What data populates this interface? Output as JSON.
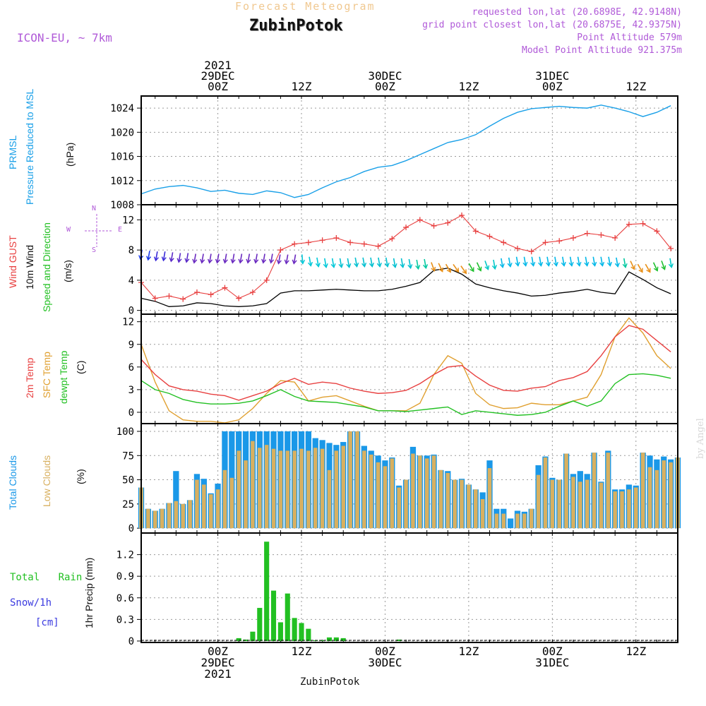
{
  "header": {
    "subtitle": "Forecast Meteogram",
    "title": "ZubinPotok",
    "model": "ICON-EU, ~ 7km",
    "requested": "requested lon,lat (20.6898E, 42.9148N)",
    "closest": "grid point closest lon,lat (20.6875E, 42.9375N)",
    "point_alt": "Point Altitude 579m",
    "model_alt": "Model Point Altitude 921.375m",
    "credit": "by Angel"
  },
  "time_axis": {
    "top_labels": [
      {
        "x": 24,
        "lines": [
          "2021",
          "29DEC",
          "00Z"
        ]
      },
      {
        "x": 36,
        "lines": [
          "12Z"
        ]
      },
      {
        "x": 48,
        "lines": [
          "30DEC",
          "00Z"
        ]
      },
      {
        "x": 60,
        "lines": [
          "12Z"
        ]
      },
      {
        "x": 72,
        "lines": [
          "31DEC",
          "00Z"
        ]
      },
      {
        "x": 84,
        "lines": [
          "12Z"
        ]
      }
    ],
    "bottom_labels": [
      {
        "x": 24,
        "lines": [
          "00Z",
          "29DEC",
          "2021"
        ]
      },
      {
        "x": 36,
        "lines": [
          "12Z"
        ]
      },
      {
        "x": 48,
        "lines": [
          "00Z",
          "30DEC"
        ]
      },
      {
        "x": 60,
        "lines": [
          "12Z"
        ]
      },
      {
        "x": 72,
        "lines": [
          "00Z",
          "31DEC"
        ]
      },
      {
        "x": 84,
        "lines": [
          "12Z"
        ]
      }
    ],
    "bottom_title": "ZubinPotok"
  },
  "panel_labels": {
    "p1": {
      "prmsl": "PRMSL",
      "pressure": "Pressure Reduced to MSL",
      "unit": "(hPa)"
    },
    "p2": {
      "gust": "Wind GUST",
      "wind": "10m Wind",
      "speed": "Speed and Direction",
      "unit": "(m/s)",
      "compass": {
        "n": "N",
        "s": "S",
        "w": "W",
        "e": "E"
      }
    },
    "p3": {
      "t2m": "2m Temp",
      "sfc": "SFC Temp",
      "dewpt": "dewpt Temp",
      "unit": "(C)"
    },
    "p4": {
      "total": "Total Clouds",
      "low": "Low Clouds",
      "unit": "(%)"
    },
    "p5": {
      "rain": "Total Rain",
      "snow": "Snow/1h",
      "snow_unit": "[cm]",
      "precip": "1hr Precip (mm)"
    }
  },
  "colors": {
    "pressure": "#1aa0e8",
    "gust": "#e84040",
    "wind": "#000000",
    "t2m": "#e84040",
    "sfc": "#e0a030",
    "dewpt": "#22c022",
    "total_clouds": "#1a98e8",
    "low_clouds": "#d8b060",
    "rain": "#22c022",
    "snow": "#3a3ae0",
    "purple": "#b05ad8"
  },
  "chart_data": [
    {
      "type": "line",
      "name": "pressure",
      "x_unit": "forecast hour",
      "ylim": [
        1008,
        1026
      ],
      "yticks": [
        1008,
        1012,
        1016,
        1020,
        1024
      ],
      "x": [
        13,
        15,
        17,
        19,
        21,
        23,
        25,
        27,
        29,
        31,
        33,
        35,
        37,
        39,
        41,
        43,
        45,
        47,
        49,
        51,
        53,
        55,
        57,
        59,
        61,
        63,
        65,
        67,
        69,
        71,
        73,
        75,
        77,
        79,
        81,
        83,
        85,
        87,
        89
      ],
      "values": [
        1009.8,
        1010.6,
        1011.0,
        1011.2,
        1010.8,
        1010.2,
        1010.4,
        1009.9,
        1009.7,
        1010.3,
        1010.0,
        1009.2,
        1009.7,
        1010.8,
        1011.8,
        1012.5,
        1013.5,
        1014.2,
        1014.5,
        1015.3,
        1016.3,
        1017.3,
        1018.3,
        1018.8,
        1019.6,
        1021.0,
        1022.3,
        1023.3,
        1023.9,
        1024.1,
        1024.3,
        1024.1,
        1024.0,
        1024.5,
        1024.0,
        1023.4,
        1022.6,
        1023.3,
        1024.4
      ]
    },
    {
      "type": "line",
      "name": "wind",
      "ylim": [
        -0.5,
        14
      ],
      "yticks": [
        0,
        4,
        8,
        12
      ],
      "x": [
        13,
        15,
        17,
        19,
        21,
        23,
        25,
        27,
        29,
        31,
        33,
        35,
        37,
        39,
        41,
        43,
        45,
        47,
        49,
        51,
        53,
        55,
        57,
        59,
        61,
        63,
        65,
        67,
        69,
        71,
        73,
        75,
        77,
        79,
        81,
        83,
        85,
        87,
        89
      ],
      "gust": [
        3.7,
        1.6,
        1.9,
        1.5,
        2.4,
        2.1,
        3.0,
        1.6,
        2.4,
        4.0,
        8.0,
        8.8,
        9.0,
        9.3,
        9.6,
        9.0,
        8.8,
        8.5,
        9.5,
        11.0,
        12.0,
        11.2,
        11.6,
        12.6,
        10.5,
        9.8,
        9.0,
        8.2,
        7.8,
        9.0,
        9.2,
        9.6,
        10.2,
        10.0,
        9.6,
        11.4,
        11.5,
        10.5,
        8.2
      ],
      "speed": [
        1.6,
        1.2,
        0.5,
        0.6,
        1.0,
        0.9,
        0.6,
        0.5,
        0.6,
        0.9,
        2.3,
        2.6,
        2.6,
        2.7,
        2.8,
        2.7,
        2.6,
        2.6,
        2.8,
        3.2,
        3.7,
        5.3,
        5.6,
        4.8,
        3.5,
        3.0,
        2.6,
        2.3,
        1.9,
        2.0,
        2.3,
        2.5,
        2.8,
        2.4,
        2.2,
        5.1,
        4.1,
        3.0,
        2.2
      ],
      "arrows": {
        "x_start": 13,
        "x_end": 89,
        "count": 70,
        "y": [
          7.4,
          7.3,
          7.2,
          7.2,
          7.1,
          7.0,
          7.0,
          6.9,
          6.9,
          6.9,
          6.9,
          6.9,
          6.9,
          6.9,
          6.9,
          6.9,
          6.9,
          6.9,
          6.8,
          6.8,
          6.8,
          6.8,
          6.5,
          6.4,
          6.3,
          6.3,
          6.3,
          6.3,
          6.4,
          6.4,
          6.4,
          6.4,
          6.4,
          6.3,
          6.3,
          6.2,
          6.1,
          6.2,
          5.8,
          5.7,
          5.6,
          5.6,
          5.4,
          5.7,
          5.8,
          6.0,
          6.1,
          6.3,
          6.4,
          6.5,
          6.5,
          6.5,
          6.5,
          6.5,
          6.5,
          6.5,
          6.5,
          6.5,
          6.5,
          6.5,
          6.5,
          6.5,
          6.4,
          6.3,
          6.0,
          5.6,
          5.6,
          5.8,
          6.0,
          6.3
        ],
        "dir": [
          80,
          80,
          80,
          80,
          80,
          80,
          80,
          80,
          80,
          80,
          80,
          80,
          80,
          80,
          80,
          80,
          80,
          80,
          80,
          80,
          80,
          95,
          100,
          100,
          100,
          100,
          100,
          100,
          100,
          100,
          100,
          100,
          100,
          100,
          100,
          100,
          100,
          100,
          110,
          115,
          120,
          125,
          125,
          120,
          115,
          110,
          100,
          100,
          100,
          100,
          100,
          100,
          100,
          100,
          100,
          100,
          100,
          100,
          100,
          100,
          100,
          100,
          100,
          100,
          115,
          120,
          120,
          115,
          110,
          100
        ],
        "color": [
          "#1a3ae8",
          "#1a3ae8",
          "#3a2ad8",
          "#3a2ad8",
          "#5a2ac8",
          "#5a2ac8",
          "#5a2ac8",
          "#6a2ac0",
          "#6a2ac0",
          "#6a2ac0",
          "#6a2ac0",
          "#6a2ac0",
          "#6a2ac0",
          "#6a2ac0",
          "#6a2ac0",
          "#6a2ac0",
          "#6a2ac0",
          "#6a2ac0",
          "#6a2ac0",
          "#6a2ac0",
          "#6a2ac0",
          "#00c8d8",
          "#00c8d8",
          "#00c8d8",
          "#00c8d8",
          "#00c8d8",
          "#00c0d0",
          "#00c0d0",
          "#00c0d0",
          "#00c0d0",
          "#00c0d0",
          "#00c0d0",
          "#00c0d0",
          "#00c0d0",
          "#00c0d0",
          "#00c0d0",
          "#00c8a0",
          "#00c8a0",
          "#e89018",
          "#e89018",
          "#e89018",
          "#e89018",
          "#e89018",
          "#20c030",
          "#20c030",
          "#00c8c8",
          "#00c8c8",
          "#00b8e8",
          "#00b8e8",
          "#00b8e8",
          "#00b8e8",
          "#00b8e8",
          "#00b8e8",
          "#00b8e8",
          "#00b8e8",
          "#00b8e8",
          "#00b8e8",
          "#00b8e8",
          "#00b8e8",
          "#00b8e8",
          "#00b8e8",
          "#00b8e8",
          "#00b8e8",
          "#00c8a0",
          "#e89018",
          "#e89018",
          "#e89018",
          "#20c030",
          "#20c030",
          "#00c8c8"
        ]
      }
    },
    {
      "type": "line",
      "name": "temperature",
      "ylim": [
        -1.5,
        13
      ],
      "yticks": [
        0,
        3,
        6,
        9,
        12
      ],
      "x": [
        13,
        15,
        17,
        19,
        21,
        23,
        25,
        27,
        29,
        31,
        33,
        35,
        37,
        39,
        41,
        43,
        45,
        47,
        49,
        51,
        53,
        55,
        57,
        59,
        61,
        63,
        65,
        67,
        69,
        71,
        73,
        75,
        77,
        79,
        81,
        83,
        85,
        87,
        89
      ],
      "t2m": [
        7.0,
        5.0,
        3.5,
        3.0,
        2.8,
        2.4,
        2.2,
        1.6,
        2.2,
        2.8,
        3.8,
        4.5,
        3.7,
        4.0,
        3.8,
        3.2,
        2.8,
        2.5,
        2.6,
        2.9,
        3.8,
        5.0,
        6.0,
        6.2,
        4.8,
        3.6,
        2.9,
        2.8,
        3.2,
        3.4,
        4.2,
        4.6,
        5.4,
        7.5,
        10.0,
        11.5,
        11.0,
        9.5,
        8.0
      ],
      "sfc": [
        9.0,
        4.0,
        0.2,
        -1.0,
        -1.2,
        -1.2,
        -1.4,
        -1.0,
        0.5,
        2.5,
        4.2,
        4.0,
        1.5,
        2.0,
        2.2,
        1.5,
        0.8,
        0.2,
        0.2,
        0.2,
        1.2,
        5.0,
        7.5,
        6.5,
        2.5,
        1.0,
        0.5,
        0.6,
        1.2,
        1.0,
        1.0,
        1.5,
        2.0,
        5.0,
        10.0,
        12.5,
        10.5,
        7.5,
        5.8
      ],
      "dewpt": [
        4.2,
        3.0,
        2.5,
        1.7,
        1.3,
        1.1,
        1.1,
        1.2,
        1.5,
        2.2,
        3.0,
        2.1,
        1.5,
        1.4,
        1.3,
        1.0,
        0.7,
        0.2,
        0.2,
        0.1,
        0.3,
        0.5,
        0.7,
        -0.3,
        0.2,
        0.0,
        -0.2,
        -0.4,
        -0.3,
        0.0,
        0.8,
        1.5,
        0.8,
        1.5,
        3.8,
        5.0,
        5.1,
        4.9,
        4.5
      ]
    },
    {
      "type": "bar",
      "name": "clouds",
      "ylim": [
        -5,
        108
      ],
      "yticks": [
        0,
        25,
        50,
        75,
        100
      ],
      "x_start": 13,
      "x_step": 1,
      "total": [
        42,
        20,
        18,
        20,
        26,
        59,
        25,
        29,
        56,
        51,
        36,
        46,
        100,
        100,
        100,
        100,
        100,
        100,
        100,
        100,
        100,
        100,
        100,
        100,
        100,
        93,
        91,
        88,
        86,
        89,
        100,
        100,
        85,
        80,
        75,
        70,
        73,
        44,
        50,
        84,
        75,
        75,
        76,
        60,
        59,
        50,
        51,
        45,
        40,
        37,
        70,
        20,
        20,
        10,
        18,
        17,
        20,
        65,
        74,
        52,
        50,
        77,
        56,
        59,
        56,
        78,
        48,
        80,
        40,
        40,
        45,
        44,
        78,
        75,
        71,
        74,
        71,
        73
      ],
      "low": [
        42,
        20,
        18,
        20,
        26,
        28,
        25,
        29,
        50,
        45,
        35,
        40,
        60,
        52,
        80,
        70,
        90,
        83,
        86,
        82,
        80,
        80,
        80,
        82,
        80,
        83,
        82,
        60,
        80,
        85,
        100,
        100,
        80,
        76,
        68,
        64,
        72,
        42,
        50,
        77,
        75,
        72,
        75,
        60,
        57,
        50,
        50,
        45,
        40,
        30,
        62,
        15,
        15,
        0,
        15,
        15,
        20,
        55,
        73,
        50,
        50,
        77,
        53,
        48,
        50,
        78,
        47,
        78,
        38,
        38,
        40,
        42,
        78,
        63,
        60,
        70,
        68,
        73
      ]
    },
    {
      "type": "bar",
      "name": "precip",
      "ylim": [
        -0.02,
        1.5
      ],
      "yticks": [
        0,
        0.3,
        0.6,
        0.9,
        1.2
      ],
      "x": [
        27,
        28,
        29,
        30,
        31,
        32,
        33,
        34,
        35,
        36,
        37,
        38,
        39,
        40,
        41,
        42,
        43,
        44,
        45,
        46,
        47,
        48,
        49,
        50,
        51,
        52
      ],
      "values": [
        0.04,
        0.02,
        0.13,
        0.46,
        1.38,
        0.7,
        0.26,
        0.66,
        0.32,
        0.25,
        0.17,
        0.01,
        0.01,
        0.05,
        0.05,
        0.04,
        0,
        0,
        0,
        0,
        0,
        0,
        0,
        0.02,
        0,
        0
      ]
    }
  ]
}
